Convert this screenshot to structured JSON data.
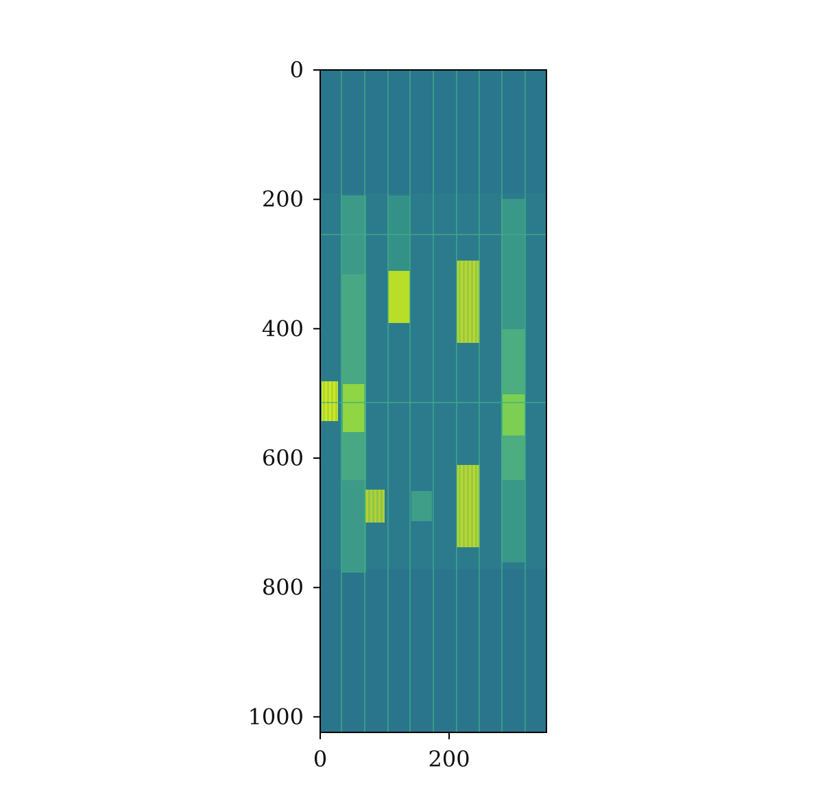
{
  "chart_data": {
    "type": "heatmap",
    "xlim": [
      0,
      351
    ],
    "ylim": [
      1024,
      0
    ],
    "xticks": [
      0,
      200
    ],
    "yticks": [
      0,
      200,
      400,
      600,
      800,
      1000
    ]
  }
}
